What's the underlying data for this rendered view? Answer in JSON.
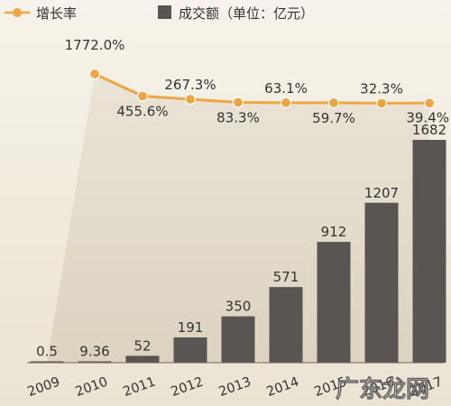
{
  "chart_data": {
    "type": "bar",
    "categories": [
      "2009",
      "2010",
      "2011",
      "2012",
      "2013",
      "2014",
      "2015",
      "2016",
      "2017"
    ],
    "series": [
      {
        "name": "成交额（单位：亿元）",
        "kind": "bar",
        "values": [
          0.5,
          9.36,
          52,
          191,
          350,
          571,
          912,
          1207,
          1682
        ],
        "labels": [
          "0.5",
          "9.36",
          "52",
          "191",
          "350",
          "571",
          "912",
          "1207",
          "1682"
        ]
      },
      {
        "name": "增长率",
        "kind": "line",
        "values": [
          null,
          1772.0,
          455.6,
          267.3,
          83.3,
          63.1,
          59.7,
          32.3,
          39.4
        ],
        "labels": [
          "",
          "1772.0%",
          "455.6%",
          "267.3%",
          "83.3%",
          "63.1%",
          "59.7%",
          "32.3%",
          "39.4%"
        ]
      }
    ],
    "ylim": [
      0,
      1682
    ],
    "legend_position": "top-left",
    "colors": {
      "bar": "#5a5552",
      "line": "#eda642",
      "text": "#333333",
      "background": "#f3eee3"
    }
  },
  "watermark": "广东龙网"
}
